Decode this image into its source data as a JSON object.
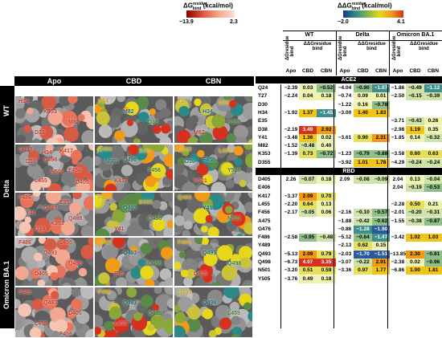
{
  "legend": {
    "left": {
      "label": "ΔG",
      "sup": "residue",
      "sub": "bind",
      "unit": "(kcal/mol)",
      "min": "−13.9",
      "max": "2.3"
    },
    "right": {
      "label": "ΔG",
      "sup": "residue",
      "sub": "bind",
      "unit": "(kcal/mol)",
      "min": "−2.0",
      "max": "4.1"
    }
  },
  "grid": {
    "columns": [
      "Apo",
      "CBD",
      "CBN"
    ],
    "rows": [
      "WT",
      "Delta",
      "Omicron BA.1"
    ]
  },
  "panels": [
    [
      {
        "labels": [
          "H34",
          "K353",
          "M82",
          "D38"
        ]
      },
      {
        "labels": [
          "H34",
          "M82",
          "D38"
        ]
      },
      {
        "labels": [
          "T27",
          "H34",
          "K353",
          "M82",
          "D38"
        ]
      }
    ],
    [
      {
        "labels": [
          "Q493",
          "Q498",
          "F456",
          "L455",
          "K417",
          "D30",
          "N501",
          "D405",
          "H34"
        ]
      },
      {
        "labels": [
          "Q493",
          "Q498",
          "F456",
          "K417",
          "D30",
          "N501"
        ]
      },
      {
        "labels": [
          "Q493",
          "F456",
          "Y505",
          "N501",
          "L455",
          "D30"
        ]
      }
    ],
    [
      {
        "labels": [
          "F486",
          "Q493",
          "Q498",
          "Q24",
          "E35",
          "Y41",
          "K353"
        ]
      },
      {
        "labels": [
          "F486",
          "Q493",
          "Q498",
          "Y41",
          "K353"
        ]
      },
      {
        "labels": [
          "Q493",
          "Y41",
          "N501"
        ]
      }
    ],
    [
      {
        "labels": [
          "F486",
          "Q493",
          "Q498",
          "D405",
          "L455"
        ]
      },
      {
        "labels": [
          "F486",
          "Q493",
          "Q498",
          "E35"
        ]
      },
      {
        "labels": [
          "F486",
          "Q493",
          "Q498",
          "D405"
        ]
      }
    ],
    [
      {
        "labels": [
          "F486",
          "Q493",
          "D405",
          "L455",
          "F456"
        ]
      },
      {
        "labels": [
          "F486",
          "Q493",
          "Q498",
          "L455"
        ]
      },
      {
        "labels": [
          "Q493",
          "Q498",
          "L455"
        ]
      }
    ]
  ],
  "table": {
    "groups": [
      "WT",
      "Delta",
      "Omicron BA.1"
    ],
    "sublabels": [
      "Apo",
      "CBD",
      "CBN"
    ],
    "col_header_a": "ΔGresidue bind",
    "col_header_b": "ΔΔGresidue bind",
    "sections": [
      {
        "title": "ACE2",
        "rows": [
          {
            "res": "Q24",
            "v": [
              "−2.39",
              "0.03",
              "−0.52",
              "−4.04",
              "−0.90",
              "−1.07",
              "−1.86",
              "−0.49",
              "−1.12"
            ]
          },
          {
            "res": "T27",
            "v": [
              "−2.24",
              "0.04",
              "0.18",
              "−0.74",
              "0.09",
              "0.01",
              "−2.50",
              "−0.15",
              "−0.39"
            ]
          },
          {
            "res": "D30",
            "v": [
              "",
              "",
              "",
              "−1.22",
              "0.16",
              "−0.78",
              "",
              "",
              ""
            ]
          },
          {
            "res": "H34",
            "v": [
              "−1.92",
              "1.37",
              "−1.45",
              "−3.00",
              "1.40",
              "1.83",
              "",
              "",
              ""
            ]
          },
          {
            "res": "E35",
            "v": [
              "",
              "",
              "",
              "",
              "",
              "",
              "−3.71",
              "−0.43",
              "0.26"
            ]
          },
          {
            "res": "D38",
            "v": [
              "−2.19",
              "3.49",
              "2.92",
              "",
              "",
              "",
              "−2.98",
              "1.19",
              "0.35"
            ]
          },
          {
            "res": "Y41",
            "v": [
              "−3.48",
              "1.36",
              "0.02",
              "−3.61",
              "0.90",
              "2.31",
              "−1.85",
              "0.14",
              "−0.32"
            ]
          },
          {
            "res": "M82",
            "v": [
              "−1.52",
              "−0.48",
              "0.40",
              "",
              "",
              "",
              "",
              "",
              ""
            ]
          },
          {
            "res": "K353",
            "v": [
              "−1.39",
              "0.73",
              "−0.72",
              "−1.23",
              "−0.79",
              "−0.88",
              "−3.58",
              "0.60",
              "0.63"
            ]
          },
          {
            "res": "D355",
            "v": [
              "",
              "",
              "",
              "−3.92",
              "1.01",
              "1.78",
              "−4.29",
              "−0.24",
              "−0.24"
            ]
          }
        ]
      },
      {
        "title": "RBD",
        "rows": [
          {
            "res": "D405",
            "v": [
              "2.26",
              "−0.07",
              "0.18",
              "2.09",
              "−0.08",
              "−0.09",
              "2.04",
              "0.13",
              "−0.04"
            ]
          },
          {
            "res": "E406",
            "v": [
              "",
              "",
              "",
              "",
              "",
              "",
              "2.04",
              "−0.19",
              "−0.53"
            ]
          },
          {
            "res": "K417",
            "v": [
              "−3.37",
              "2.09",
              "0.70",
              "",
              "",
              "",
              "",
              "",
              ""
            ]
          },
          {
            "res": "L455",
            "v": [
              "−2.20",
              "0.64",
              "0.13",
              "",
              "",
              "",
              "−2.28",
              "0.50",
              "0.21"
            ]
          },
          {
            "res": "F456",
            "v": [
              "−2.17",
              "−0.05",
              "0.06",
              "−2.16",
              "−0.10",
              "−0.57",
              "−2.01",
              "−0.20",
              "−0.31"
            ]
          },
          {
            "res": "A475",
            "v": [
              "",
              "",
              "",
              "−1.88",
              "−0.42",
              "−0.62",
              "−1.55",
              "−0.38",
              "−0.87"
            ]
          },
          {
            "res": "G476",
            "v": [
              "",
              "",
              "",
              "−0.86",
              "−1.28",
              "−1.90",
              "",
              "",
              ""
            ]
          },
          {
            "res": "F486",
            "v": [
              "−2.58",
              "−0.95",
              "−0.48",
              "−5.12",
              "−0.64",
              "−1.47",
              "−3.42",
              "1.02",
              "1.03"
            ]
          },
          {
            "res": "Y489",
            "v": [
              "",
              "",
              "",
              "−2.13",
              "0.62",
              "0.15",
              "",
              "",
              ""
            ]
          },
          {
            "res": "Q493",
            "v": [
              "−5.13",
              "2.09",
              "0.79",
              "−2.03",
              "−1.70",
              "−1.51",
              "−13.85",
              "2.30",
              "−0.81"
            ]
          },
          {
            "res": "Q498",
            "v": [
              "−6.73",
              "4.07",
              "3.35",
              "−3.07",
              "−0.22",
              "2.91",
              "−2.38",
              "0.02",
              "−0.96"
            ]
          },
          {
            "res": "N501",
            "v": [
              "−3.20",
              "0.51",
              "0.59",
              "−3.36",
              "0.97",
              "1.77",
              "−6.86",
              "1.00",
              "1.81"
            ]
          },
          {
            "res": "Y505",
            "v": [
              "−3.76",
              "0.49",
              "0.18",
              "",
              "",
              "",
              "",
              "",
              ""
            ]
          }
        ]
      }
    ]
  }
}
